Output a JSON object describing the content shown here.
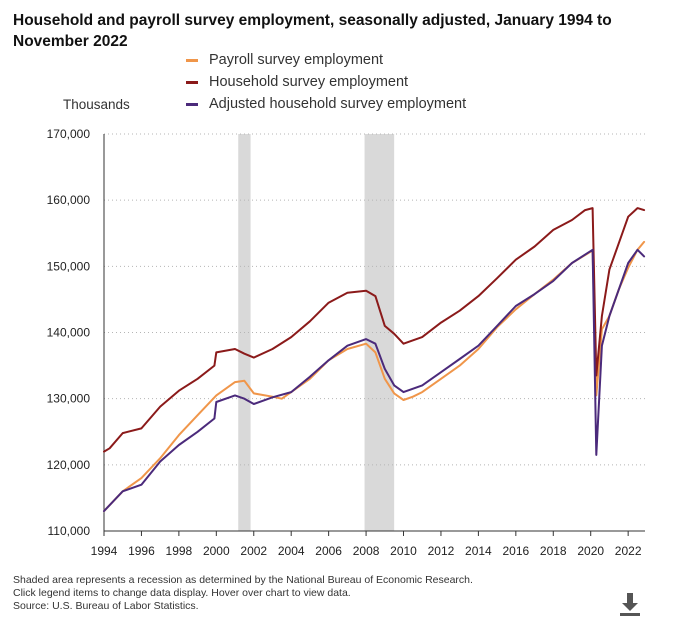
{
  "chart_data": {
    "type": "line",
    "title": "Household and payroll survey employment, seasonally adjusted, January 1994 to November 2022",
    "ylabel": "Thousands",
    "xlabel": "",
    "ylim": [
      110000,
      170000
    ],
    "xlim": [
      1994.0,
      2022.9
    ],
    "yticks": [
      110000,
      120000,
      130000,
      140000,
      150000,
      160000,
      170000
    ],
    "ytick_labels": [
      "110,000",
      "120,000",
      "130,000",
      "140,000",
      "150,000",
      "160,000",
      "170,000"
    ],
    "xticks": [
      1994,
      1996,
      1998,
      2000,
      2002,
      2004,
      2006,
      2008,
      2010,
      2012,
      2014,
      2016,
      2018,
      2020,
      2022
    ],
    "xtick_labels": [
      "1994",
      "1996",
      "1998",
      "2000",
      "2002",
      "2004",
      "2006",
      "2008",
      "2010",
      "2012",
      "2014",
      "2016",
      "2018",
      "2020",
      "2022"
    ],
    "recessions": [
      [
        2001.17,
        2001.83
      ],
      [
        2007.92,
        2009.5
      ]
    ],
    "grid": "horizontal dotted",
    "legend_position": "top",
    "series": [
      {
        "name": "Payroll survey employment",
        "color": "#f0964a",
        "points": [
          [
            1994.0,
            113000
          ],
          [
            1995.0,
            116000
          ],
          [
            1996.0,
            118000
          ],
          [
            1997.0,
            121000
          ],
          [
            1998.0,
            124500
          ],
          [
            1999.0,
            127500
          ],
          [
            2000.0,
            130500
          ],
          [
            2001.0,
            132500
          ],
          [
            2001.5,
            132700
          ],
          [
            2002.0,
            130800
          ],
          [
            2003.0,
            130300
          ],
          [
            2003.5,
            130000
          ],
          [
            2004.0,
            131000
          ],
          [
            2005.0,
            133000
          ],
          [
            2006.0,
            135800
          ],
          [
            2007.0,
            137500
          ],
          [
            2008.0,
            138300
          ],
          [
            2008.5,
            137000
          ],
          [
            2009.0,
            133000
          ],
          [
            2009.5,
            130800
          ],
          [
            2010.0,
            129800
          ],
          [
            2010.5,
            130300
          ],
          [
            2011.0,
            131000
          ],
          [
            2012.0,
            133000
          ],
          [
            2013.0,
            135000
          ],
          [
            2014.0,
            137500
          ],
          [
            2015.0,
            140800
          ],
          [
            2016.0,
            143500
          ],
          [
            2017.0,
            145800
          ],
          [
            2018.0,
            148000
          ],
          [
            2019.0,
            150500
          ],
          [
            2020.1,
            152400
          ],
          [
            2020.3,
            130500
          ],
          [
            2020.6,
            140500
          ],
          [
            2021.0,
            142500
          ],
          [
            2021.5,
            146500
          ],
          [
            2022.0,
            149800
          ],
          [
            2022.5,
            152500
          ],
          [
            2022.85,
            153700
          ]
        ]
      },
      {
        "name": "Household survey employment",
        "color": "#8b1a1a",
        "points": [
          [
            1994.0,
            122000
          ],
          [
            1994.3,
            122500
          ],
          [
            1995.0,
            124800
          ],
          [
            1996.0,
            125500
          ],
          [
            1997.0,
            128800
          ],
          [
            1998.0,
            131200
          ],
          [
            1999.0,
            133000
          ],
          [
            1999.9,
            135000
          ],
          [
            2000.0,
            137000
          ],
          [
            2001.0,
            137500
          ],
          [
            2001.5,
            136800
          ],
          [
            2002.0,
            136200
          ],
          [
            2003.0,
            137500
          ],
          [
            2004.0,
            139300
          ],
          [
            2005.0,
            141700
          ],
          [
            2006.0,
            144500
          ],
          [
            2007.0,
            146000
          ],
          [
            2008.0,
            146300
          ],
          [
            2008.5,
            145500
          ],
          [
            2009.0,
            141000
          ],
          [
            2009.5,
            139800
          ],
          [
            2010.0,
            138300
          ],
          [
            2011.0,
            139300
          ],
          [
            2012.0,
            141500
          ],
          [
            2013.0,
            143300
          ],
          [
            2014.0,
            145500
          ],
          [
            2015.0,
            148200
          ],
          [
            2016.0,
            151000
          ],
          [
            2017.0,
            153000
          ],
          [
            2018.0,
            155500
          ],
          [
            2019.0,
            157000
          ],
          [
            2019.7,
            158500
          ],
          [
            2020.1,
            158800
          ],
          [
            2020.3,
            133500
          ],
          [
            2020.6,
            142500
          ],
          [
            2021.0,
            149500
          ],
          [
            2021.5,
            153500
          ],
          [
            2022.0,
            157500
          ],
          [
            2022.5,
            158800
          ],
          [
            2022.85,
            158500
          ]
        ]
      },
      {
        "name": "Adjusted household survey employment",
        "color": "#4b2a7b",
        "points": [
          [
            1994.0,
            113000
          ],
          [
            1995.0,
            116000
          ],
          [
            1996.0,
            117000
          ],
          [
            1997.0,
            120500
          ],
          [
            1998.0,
            123000
          ],
          [
            1999.0,
            125000
          ],
          [
            1999.9,
            127000
          ],
          [
            2000.0,
            129500
          ],
          [
            2001.0,
            130500
          ],
          [
            2001.5,
            130000
          ],
          [
            2002.0,
            129200
          ],
          [
            2003.0,
            130200
          ],
          [
            2004.0,
            131000
          ],
          [
            2005.0,
            133300
          ],
          [
            2006.0,
            135800
          ],
          [
            2007.0,
            138000
          ],
          [
            2008.0,
            139000
          ],
          [
            2008.5,
            138300
          ],
          [
            2009.0,
            134500
          ],
          [
            2009.5,
            132000
          ],
          [
            2010.0,
            131000
          ],
          [
            2011.0,
            132000
          ],
          [
            2012.0,
            134000
          ],
          [
            2013.0,
            136000
          ],
          [
            2014.0,
            138000
          ],
          [
            2015.0,
            141000
          ],
          [
            2016.0,
            144000
          ],
          [
            2017.0,
            145800
          ],
          [
            2018.0,
            147800
          ],
          [
            2019.0,
            150500
          ],
          [
            2020.1,
            152500
          ],
          [
            2020.3,
            121500
          ],
          [
            2020.6,
            138000
          ],
          [
            2021.0,
            142500
          ],
          [
            2021.5,
            146500
          ],
          [
            2022.0,
            150500
          ],
          [
            2022.5,
            152500
          ],
          [
            2022.85,
            151500
          ]
        ]
      }
    ]
  },
  "footnotes": [
    "Shaded area represents a recession as determined by the National Bureau of Economic Research.",
    "Click legend items to change data display. Hover over chart to view data.",
    "Source: U.S. Bureau of Labor Statistics."
  ],
  "download_icon": "download-icon"
}
